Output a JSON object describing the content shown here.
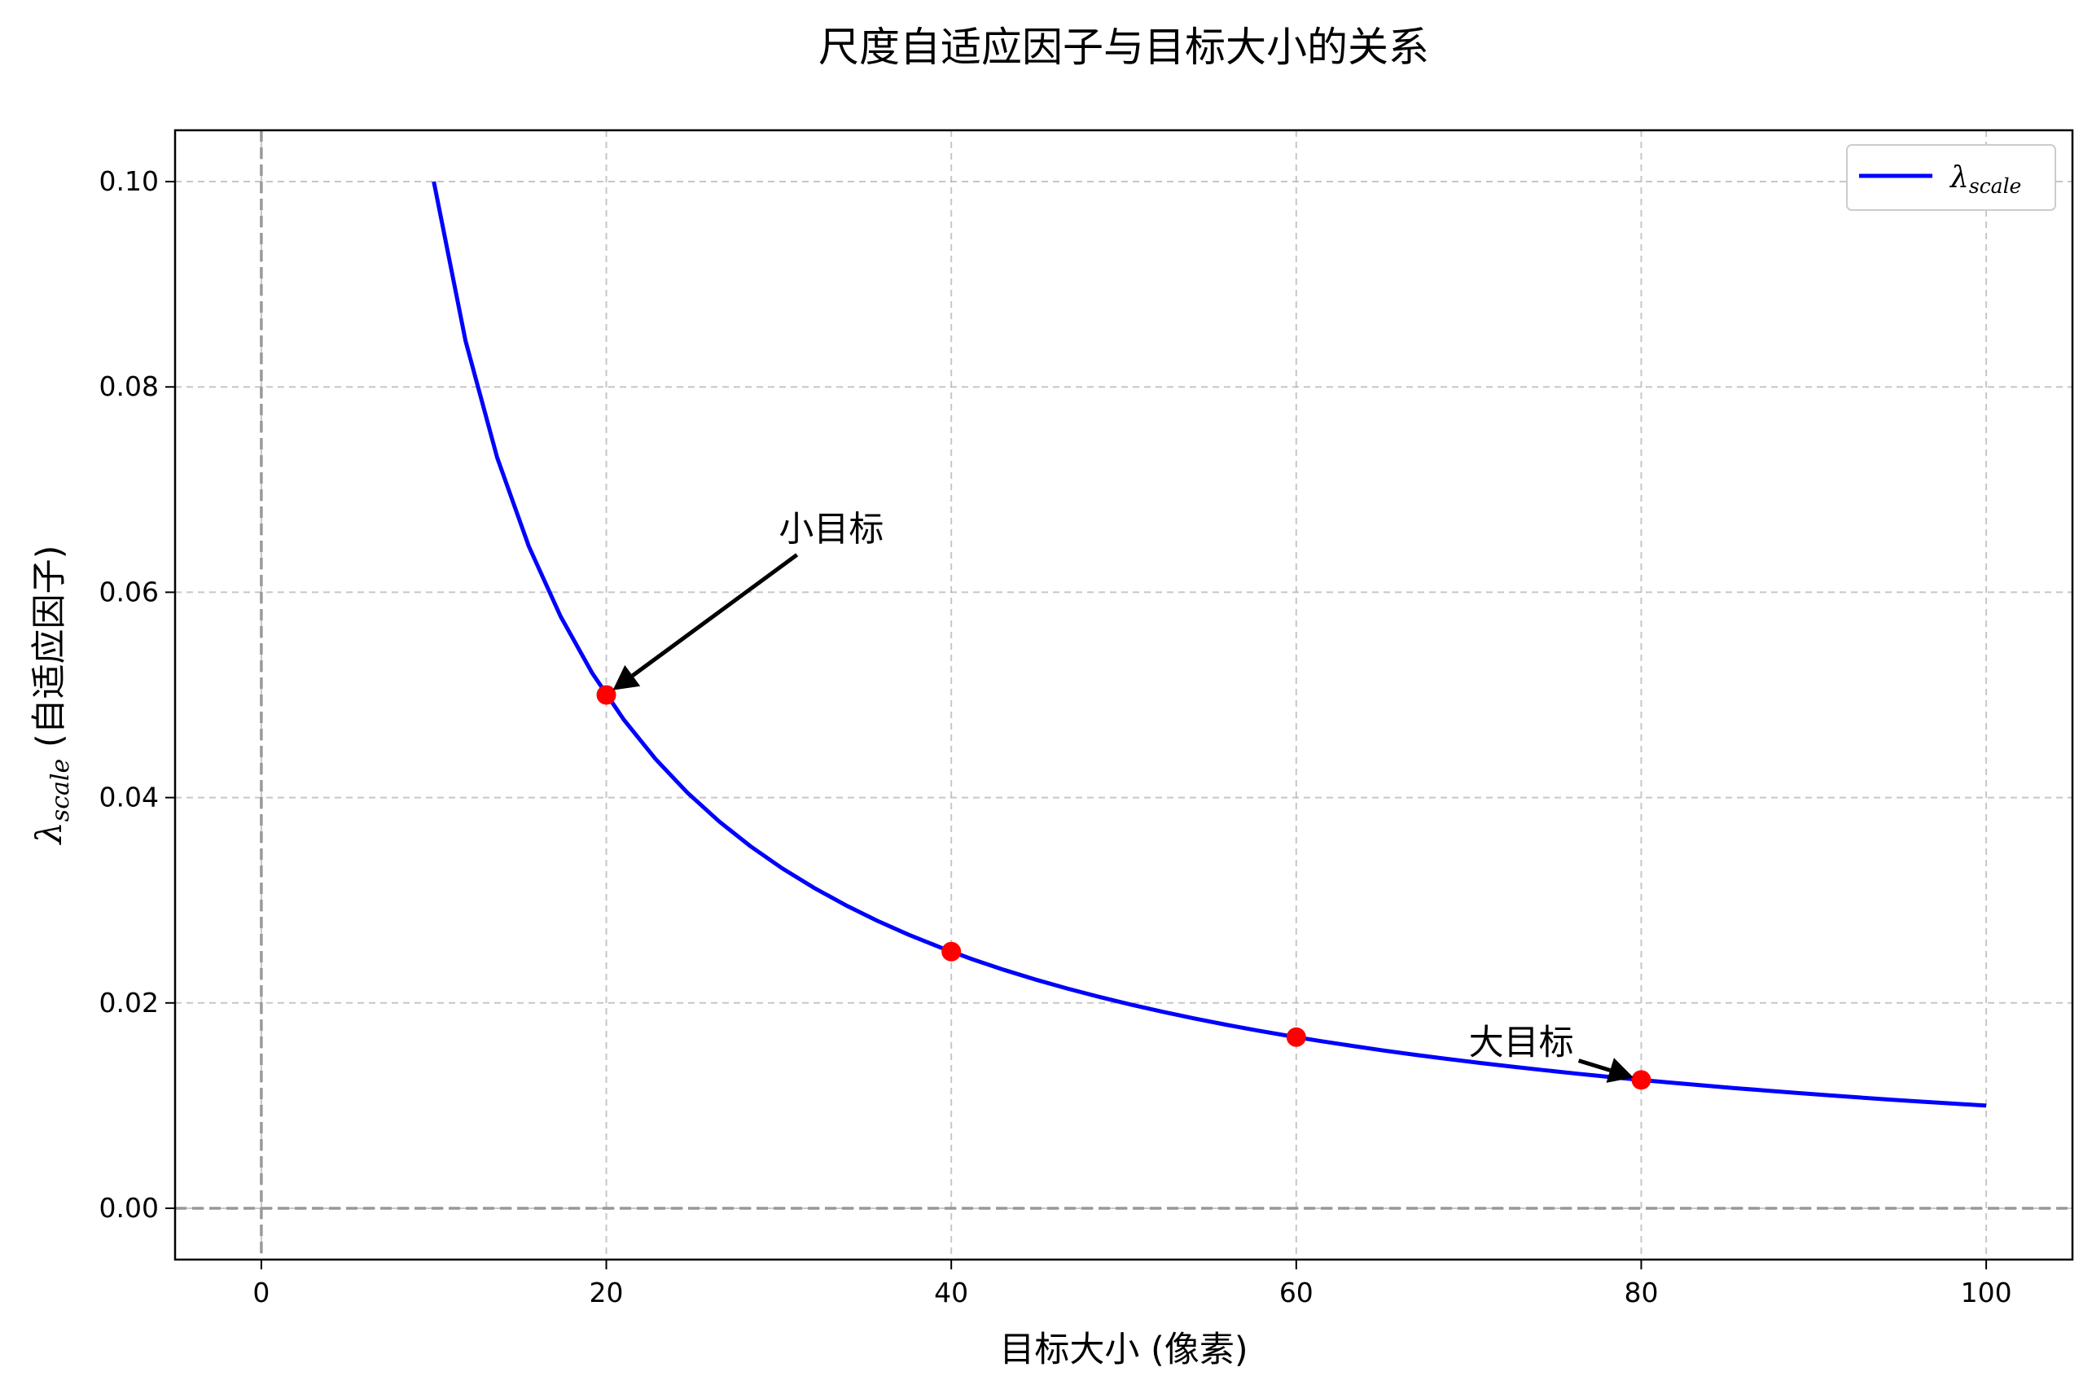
{
  "chart_data": {
    "type": "line",
    "title": "尺度自适应因子与目标大小的关系",
    "xlabel": "目标大小 (像素)",
    "ylabel": {
      "symbol": "λ",
      "subscript": "scale",
      "suffix": " (自适应因子)"
    },
    "xlim": [
      -5,
      105
    ],
    "ylim": [
      -0.005,
      0.105
    ],
    "x_ticks": [
      0,
      20,
      40,
      60,
      80,
      100
    ],
    "x_tick_labels": [
      "0",
      "20",
      "40",
      "60",
      "80",
      "100"
    ],
    "y_ticks": [
      0.0,
      0.02,
      0.04,
      0.06,
      0.08,
      0.1
    ],
    "y_tick_labels": [
      "0.00",
      "0.02",
      "0.04",
      "0.06",
      "0.08",
      "0.10"
    ],
    "grid": true,
    "legend_position": "top-right",
    "series": [
      {
        "name": "λ_scale",
        "legend_symbol": "λ",
        "legend_subscript": "scale",
        "color": "#0000ff",
        "x": [
          10,
          11.84,
          13.67,
          15.51,
          17.35,
          19.18,
          21.02,
          22.86,
          24.69,
          26.53,
          28.37,
          30.2,
          32.04,
          33.88,
          35.71,
          37.55,
          39.39,
          41.22,
          43.06,
          44.9,
          46.73,
          48.57,
          50.41,
          52.24,
          54.08,
          55.92,
          57.76,
          59.59,
          61.43,
          63.27,
          65.1,
          66.94,
          68.78,
          70.61,
          72.45,
          74.29,
          76.12,
          77.96,
          79.8,
          81.63,
          83.47,
          85.31,
          87.14,
          88.98,
          90.82,
          92.65,
          94.49,
          96.33,
          98.16,
          100
        ],
        "y": [
          0.1,
          0.08448,
          0.07313,
          0.06447,
          0.05765,
          0.05213,
          0.04757,
          0.04375,
          0.0405,
          0.03769,
          0.03525,
          0.03311,
          0.03121,
          0.02952,
          0.028,
          0.02663,
          0.02539,
          0.02426,
          0.02322,
          0.02227,
          0.0214,
          0.02059,
          0.01984,
          0.01914,
          0.01849,
          0.01788,
          0.01731,
          0.01678,
          0.01628,
          0.01581,
          0.01536,
          0.01494,
          0.01454,
          0.01416,
          0.0138,
          0.01346,
          0.01314,
          0.01283,
          0.01253,
          0.01225,
          0.01198,
          0.01172,
          0.01148,
          0.01124,
          0.01101,
          0.01079,
          0.01058,
          0.01038,
          0.01019,
          0.01
        ]
      }
    ],
    "markers": {
      "color": "#ff0000",
      "x": [
        20,
        40,
        60,
        80
      ],
      "y": [
        0.05,
        0.025,
        0.016667,
        0.0125
      ]
    },
    "reference_lines": {
      "color": "#999999",
      "x": 0,
      "y": 0
    },
    "annotations": [
      {
        "text": "小目标",
        "point": [
          20,
          0.05
        ],
        "text_pos": [
          30,
          0.065
        ]
      },
      {
        "text": "大目标",
        "point": [
          80,
          0.0125
        ],
        "text_pos": [
          70,
          0.015
        ]
      }
    ]
  }
}
